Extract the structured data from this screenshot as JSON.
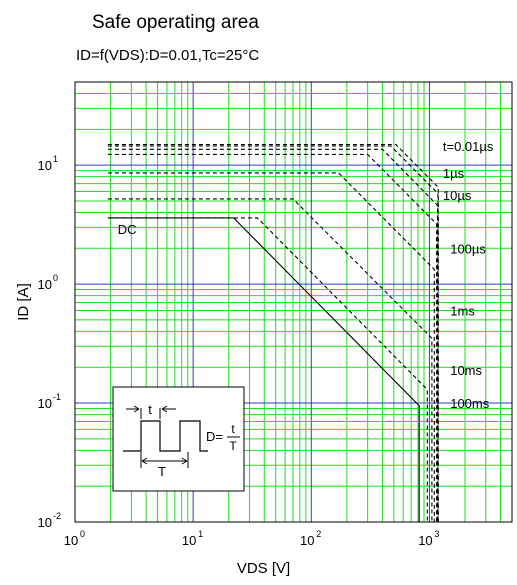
{
  "chart_data": {
    "type": "line",
    "title": "Safe operating area",
    "subtitle": "ID=f(VDS):D=0.01,Tc=25°C",
    "xlabel": "VDS [V]",
    "ylabel": "ID [A]",
    "x_scale": "log",
    "y_scale": "log",
    "xlim": [
      1,
      5000
    ],
    "ylim": [
      0.01,
      50
    ],
    "grid": true,
    "x_ticks": [
      {
        "value": 1,
        "base": "10",
        "exp": "0"
      },
      {
        "value": 10,
        "base": "10",
        "exp": "1"
      },
      {
        "value": 100,
        "base": "10",
        "exp": "2"
      },
      {
        "value": 1000,
        "base": "10",
        "exp": "3"
      }
    ],
    "y_ticks": [
      {
        "value": 0.01,
        "base": "10",
        "exp": "-2"
      },
      {
        "value": 0.1,
        "base": "10",
        "exp": "-1"
      },
      {
        "value": 1,
        "base": "10",
        "exp": "0"
      },
      {
        "value": 10,
        "base": "10",
        "exp": "1"
      }
    ],
    "series": [
      {
        "name": "DC",
        "style": "solid",
        "points": [
          [
            1.9,
            3.6
          ],
          [
            22,
            3.6
          ],
          [
            820,
            0.095
          ],
          [
            820,
            0.01
          ]
        ]
      },
      {
        "name": "100ms",
        "style": "dashed",
        "points": [
          [
            1.9,
            3.6
          ],
          [
            35,
            3.6
          ],
          [
            960,
            0.13
          ],
          [
            960,
            0.01
          ]
        ]
      },
      {
        "name": "10ms",
        "style": "dashed",
        "points": [
          [
            1.9,
            5.2
          ],
          [
            70,
            5.2
          ],
          [
            1050,
            0.35
          ],
          [
            1050,
            0.01
          ]
        ]
      },
      {
        "name": "1ms",
        "style": "dashed",
        "points": [
          [
            1.9,
            8.6
          ],
          [
            170,
            8.6
          ],
          [
            1100,
            1.33
          ],
          [
            1100,
            0.01
          ]
        ]
      },
      {
        "name": "100µs",
        "style": "dashed",
        "points": [
          [
            1.9,
            12.3
          ],
          [
            300,
            12.3
          ],
          [
            1150,
            3.2
          ],
          [
            1150,
            0.01
          ]
        ]
      },
      {
        "name": "10µs",
        "style": "dashed",
        "points": [
          [
            1.9,
            13.6
          ],
          [
            400,
            13.6
          ],
          [
            1170,
            4.6
          ],
          [
            1170,
            0.01
          ]
        ]
      },
      {
        "name": "1µs",
        "style": "dashed",
        "points": [
          [
            1.9,
            14.5
          ],
          [
            470,
            14.5
          ],
          [
            1180,
            5.8
          ],
          [
            1180,
            0.01
          ]
        ]
      },
      {
        "name": "t=0.01µs",
        "style": "dashed",
        "points": [
          [
            1.9,
            14.9
          ],
          [
            520,
            14.9
          ],
          [
            1190,
            6.5
          ],
          [
            1190,
            0.01
          ]
        ]
      }
    ],
    "annotations": [
      {
        "text": "t=0.01µs",
        "x": 1300,
        "y": 14.5
      },
      {
        "text": "1µs",
        "x": 1300,
        "y": 8.6
      },
      {
        "text": "10µs",
        "x": 1300,
        "y": 5.6
      },
      {
        "text": "100µs",
        "x": 1500,
        "y": 2.0
      },
      {
        "text": "1ms",
        "x": 1500,
        "y": 0.6
      },
      {
        "text": "10ms",
        "x": 1500,
        "y": 0.19
      },
      {
        "text": "100ms",
        "x": 1500,
        "y": 0.1
      },
      {
        "text": "DC",
        "x": 2.3,
        "y": 2.9
      }
    ],
    "inset": {
      "t_label": "t",
      "T_label": "T",
      "D_label": "D=",
      "D_num": "t",
      "D_den": "T"
    }
  }
}
